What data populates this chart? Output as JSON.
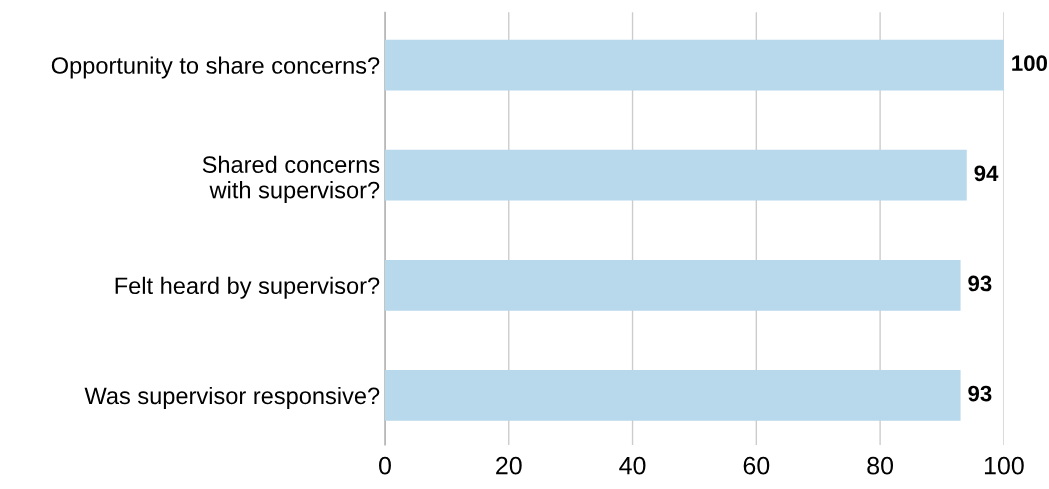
{
  "chart_data": {
    "type": "bar",
    "orientation": "horizontal",
    "categories": [
      "Opportunity to share concerns?",
      "Shared concerns\nwith supervisor?",
      "Felt heard by supervisor?",
      "Was supervisor responsive?"
    ],
    "values": [
      100,
      94,
      93,
      93
    ],
    "color": "#b8d8eb",
    "xlim": [
      0,
      100
    ],
    "xticks": [
      0,
      20,
      40,
      60,
      80,
      100
    ],
    "grid": "x",
    "data_labels": true
  }
}
